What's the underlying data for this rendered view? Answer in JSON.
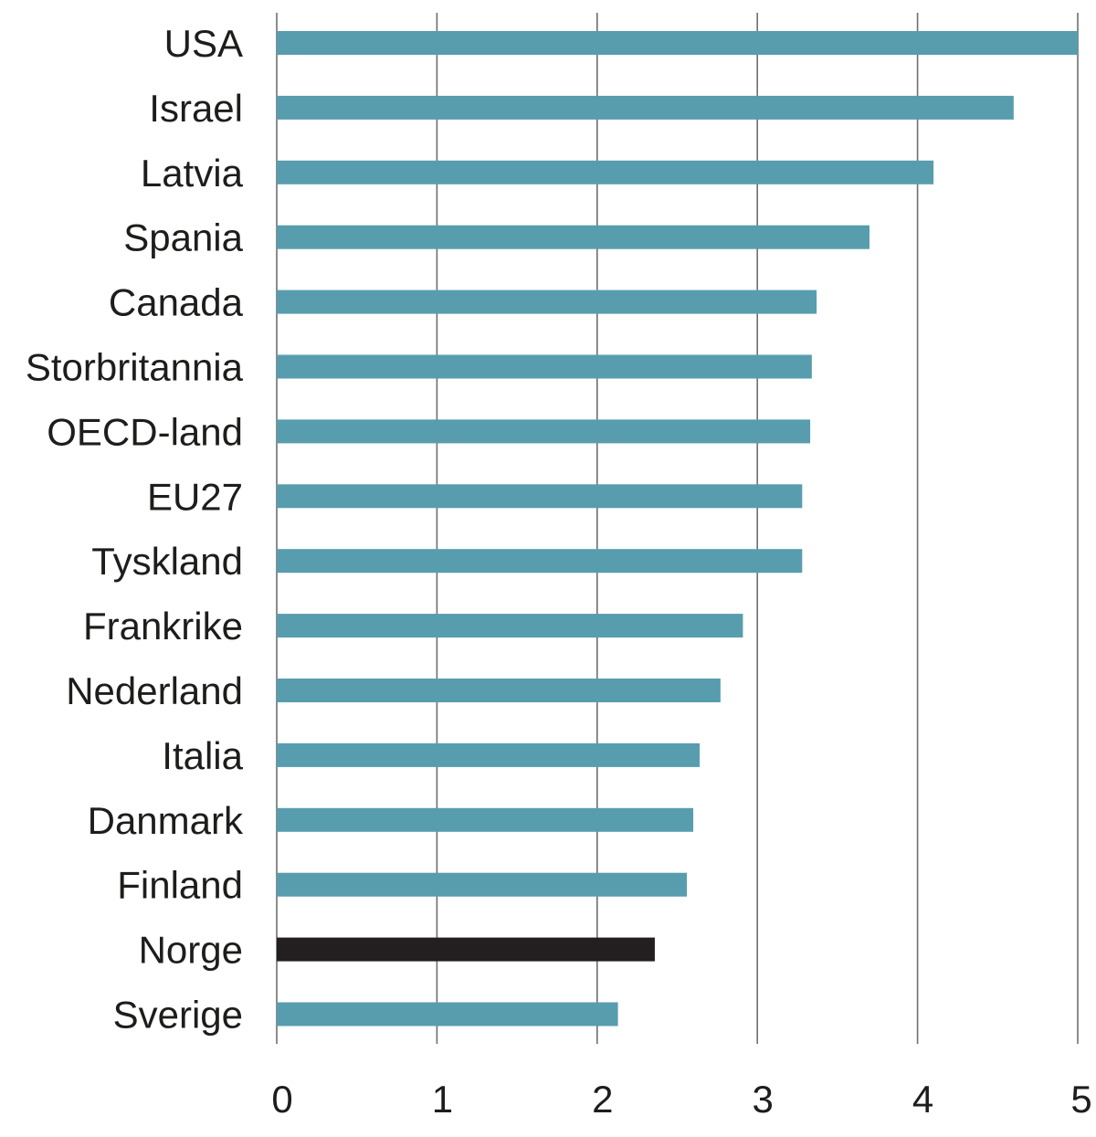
{
  "chart_data": {
    "type": "bar",
    "orientation": "horizontal",
    "title": "",
    "xlabel": "",
    "ylabel": "",
    "xlim": [
      0,
      5
    ],
    "xticks": [
      0,
      1,
      2,
      3,
      4,
      5
    ],
    "grid": "vertical",
    "legend": "none",
    "categories": [
      "USA",
      "Israel",
      "Latvia",
      "Spania",
      "Canada",
      "Storbritannia",
      "OECD-land",
      "EU27",
      "Tyskland",
      "Frankrike",
      "Nederland",
      "Italia",
      "Danmark",
      "Finland",
      "Norge",
      "Sverige"
    ],
    "values": [
      5.0,
      4.6,
      4.1,
      3.7,
      3.37,
      3.34,
      3.33,
      3.28,
      3.28,
      2.91,
      2.77,
      2.64,
      2.6,
      2.56,
      2.36,
      2.13
    ],
    "highlight": "Norge",
    "colors": {
      "bar": "#579dae",
      "highlight": "#231f20",
      "grid": "#6f6f6f",
      "text": "#1d1d1b"
    }
  }
}
